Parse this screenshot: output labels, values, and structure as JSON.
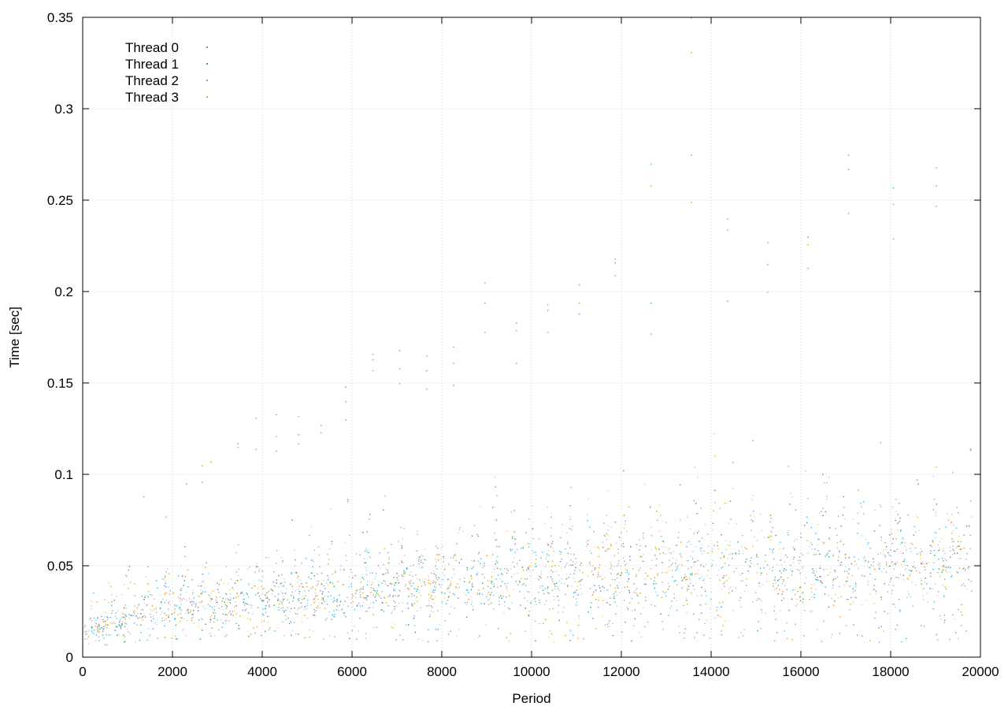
{
  "chart_data": {
    "type": "scatter",
    "xlabel": "Period",
    "ylabel": "Time [sec]",
    "xlim": [
      0,
      20000
    ],
    "ylim": [
      0,
      0.35
    ],
    "grid": true,
    "legend_position": "top-left",
    "x_ticks": [
      "0",
      "2000",
      "4000",
      "6000",
      "8000",
      "10000",
      "12000",
      "14000",
      "16000",
      "18000",
      "20000"
    ],
    "y_ticks": [
      "0",
      "0.05",
      "0.1",
      "0.15",
      "0.2",
      "0.25",
      "0.3",
      "0.35"
    ],
    "series": [
      {
        "name": "Thread 0",
        "color": "#9a6fc2",
        "mark": "dot"
      },
      {
        "name": "Thread 1",
        "color": "#2aa36f",
        "mark": "dot"
      },
      {
        "name": "Thread 2",
        "color": "#4fb4e8",
        "mark": "dot"
      },
      {
        "name": "Thread 3",
        "color": "#e6a62a",
        "mark": "dot"
      }
    ],
    "trend": {
      "x": [
        0,
        1000,
        2000,
        4000,
        6000,
        8000,
        10000,
        12000,
        14000,
        16000,
        18000,
        19800
      ],
      "typical_y": [
        0.013,
        0.022,
        0.027,
        0.031,
        0.035,
        0.038,
        0.041,
        0.043,
        0.045,
        0.046,
        0.048,
        0.05
      ],
      "upper_y": [
        0.025,
        0.04,
        0.045,
        0.055,
        0.065,
        0.07,
        0.075,
        0.08,
        0.09,
        0.09,
        0.09,
        0.09
      ],
      "lower_y": [
        0.005,
        0.008,
        0.01,
        0.01,
        0.01,
        0.008,
        0.008,
        0.008,
        0.008,
        0.008,
        0.008,
        0.008
      ]
    },
    "outliers": [
      {
        "x": 1350,
        "y": 0.088
      },
      {
        "x": 1850,
        "y": 0.077
      },
      {
        "x": 2300,
        "y": 0.095
      },
      {
        "x": 2650,
        "y": 0.105
      },
      {
        "x": 2650,
        "y": 0.096
      },
      {
        "x": 2850,
        "y": 0.107
      },
      {
        "x": 3450,
        "y": 0.117
      },
      {
        "x": 3450,
        "y": 0.115
      },
      {
        "x": 3850,
        "y": 0.131
      },
      {
        "x": 3850,
        "y": 0.114
      },
      {
        "x": 4300,
        "y": 0.133
      },
      {
        "x": 4300,
        "y": 0.121
      },
      {
        "x": 4300,
        "y": 0.113
      },
      {
        "x": 4800,
        "y": 0.132
      },
      {
        "x": 4800,
        "y": 0.122
      },
      {
        "x": 4800,
        "y": 0.117
      },
      {
        "x": 5300,
        "y": 0.127
      },
      {
        "x": 5300,
        "y": 0.123
      },
      {
        "x": 5850,
        "y": 0.148
      },
      {
        "x": 5850,
        "y": 0.14
      },
      {
        "x": 5850,
        "y": 0.13
      },
      {
        "x": 6450,
        "y": 0.166
      },
      {
        "x": 6450,
        "y": 0.163
      },
      {
        "x": 6450,
        "y": 0.157
      },
      {
        "x": 7050,
        "y": 0.168
      },
      {
        "x": 7050,
        "y": 0.158
      },
      {
        "x": 7050,
        "y": 0.15
      },
      {
        "x": 7650,
        "y": 0.165
      },
      {
        "x": 7650,
        "y": 0.157
      },
      {
        "x": 7650,
        "y": 0.147
      },
      {
        "x": 8250,
        "y": 0.17
      },
      {
        "x": 8250,
        "y": 0.161
      },
      {
        "x": 8250,
        "y": 0.149
      },
      {
        "x": 8950,
        "y": 0.205
      },
      {
        "x": 8950,
        "y": 0.194
      },
      {
        "x": 8950,
        "y": 0.178
      },
      {
        "x": 9650,
        "y": 0.183
      },
      {
        "x": 9650,
        "y": 0.179
      },
      {
        "x": 9650,
        "y": 0.161
      },
      {
        "x": 10350,
        "y": 0.193
      },
      {
        "x": 10350,
        "y": 0.19
      },
      {
        "x": 10350,
        "y": 0.178
      },
      {
        "x": 11050,
        "y": 0.204
      },
      {
        "x": 11050,
        "y": 0.194
      },
      {
        "x": 11050,
        "y": 0.188
      },
      {
        "x": 11850,
        "y": 0.218
      },
      {
        "x": 11850,
        "y": 0.216
      },
      {
        "x": 11850,
        "y": 0.209
      },
      {
        "x": 12650,
        "y": 0.27
      },
      {
        "x": 12650,
        "y": 0.258
      },
      {
        "x": 12650,
        "y": 0.194
      },
      {
        "x": 12650,
        "y": 0.177
      },
      {
        "x": 13550,
        "y": 0.35
      },
      {
        "x": 13550,
        "y": 0.331
      },
      {
        "x": 13550,
        "y": 0.275
      },
      {
        "x": 13550,
        "y": 0.249
      },
      {
        "x": 14350,
        "y": 0.24
      },
      {
        "x": 14350,
        "y": 0.234
      },
      {
        "x": 14350,
        "y": 0.195
      },
      {
        "x": 15250,
        "y": 0.227
      },
      {
        "x": 15250,
        "y": 0.215
      },
      {
        "x": 15250,
        "y": 0.2
      },
      {
        "x": 16150,
        "y": 0.23
      },
      {
        "x": 16150,
        "y": 0.226
      },
      {
        "x": 16150,
        "y": 0.213
      },
      {
        "x": 17050,
        "y": 0.275
      },
      {
        "x": 17050,
        "y": 0.267
      },
      {
        "x": 17050,
        "y": 0.243
      },
      {
        "x": 18050,
        "y": 0.257
      },
      {
        "x": 18050,
        "y": 0.248
      },
      {
        "x": 18050,
        "y": 0.229
      },
      {
        "x": 19000,
        "y": 0.268
      },
      {
        "x": 19000,
        "y": 0.258
      },
      {
        "x": 19000,
        "y": 0.247
      }
    ]
  }
}
